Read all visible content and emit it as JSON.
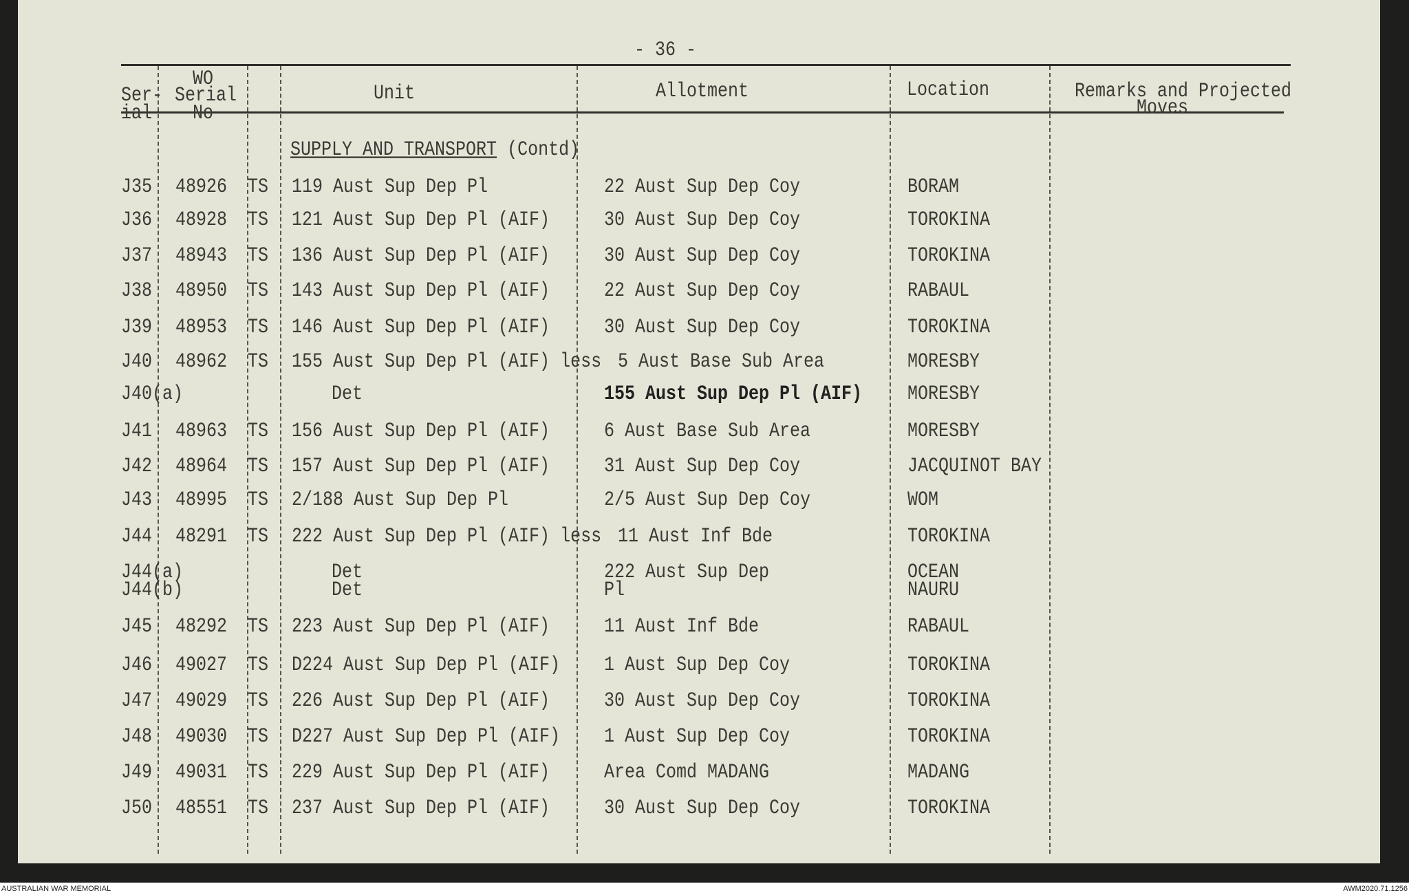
{
  "page_number": "- 36 -",
  "headers": {
    "serial": [
      "Ser-",
      "ial"
    ],
    "wo": [
      "WO",
      "Serial",
      "No"
    ],
    "unit": "Unit",
    "allotment": "Allotment",
    "location": "Location",
    "remarks": [
      "Remarks and Projected",
      "Moves"
    ]
  },
  "section": "SUPPLY AND TRANSPORT",
  "section_suffix": "(Contd)",
  "rows": [
    {
      "serial": "J35",
      "wo": "48926",
      "ts": "TS",
      "unit": "119 Aust Sup Dep Pl",
      "allotment": "22 Aust Sup Dep Coy",
      "location": "BORAM"
    },
    {
      "serial": "J36",
      "wo": "48928",
      "ts": "TS",
      "unit": "121 Aust Sup Dep Pl (AIF)",
      "allotment": "30 Aust Sup Dep Coy",
      "location": "TOROKINA"
    },
    {
      "serial": "J37",
      "wo": "48943",
      "ts": "TS",
      "unit": "136 Aust Sup Dep Pl (AIF)",
      "allotment": "30 Aust Sup Dep Coy",
      "location": "TOROKINA"
    },
    {
      "serial": "J38",
      "wo": "48950",
      "ts": "TS",
      "unit": "143 Aust Sup Dep Pl (AIF)",
      "allotment": "22 Aust Sup Dep Coy",
      "location": "RABAUL"
    },
    {
      "serial": "J39",
      "wo": "48953",
      "ts": "TS",
      "unit": "146 Aust Sup Dep Pl (AIF)",
      "allotment": "30 Aust Sup Dep Coy",
      "location": "TOROKINA"
    },
    {
      "serial": "J40",
      "wo": "48962",
      "ts": "TS",
      "unit": "155 Aust Sup Dep Pl (AIF) less",
      "allotment": "5 Aust Base Sub Area",
      "location": "MORESBY"
    },
    {
      "serial": "J40(a)",
      "wo": "",
      "ts": "",
      "unit": "Det",
      "allotment": "155 Aust Sup Dep Pl (AIF)",
      "location": "MORESBY",
      "bold": true
    },
    {
      "serial": "J41",
      "wo": "48963",
      "ts": "TS",
      "unit": "156 Aust Sup Dep Pl (AIF)",
      "allotment": "6 Aust Base Sub Area",
      "location": "MORESBY"
    },
    {
      "serial": "J42",
      "wo": "48964",
      "ts": "TS",
      "unit": "157 Aust Sup Dep Pl (AIF)",
      "allotment": "31 Aust Sup Dep Coy",
      "location": "JACQUINOT BAY"
    },
    {
      "serial": "J43",
      "wo": "48995",
      "ts": "TS",
      "unit": "2/188 Aust Sup Dep Pl",
      "allotment": "2/5 Aust Sup Dep Coy",
      "location": "WOM"
    },
    {
      "serial": "J44",
      "wo": "48291",
      "ts": "TS",
      "unit": "222 Aust Sup Dep Pl (AIF) less",
      "allotment": "11 Aust Inf Bde",
      "location": "TOROKINA"
    },
    {
      "serial": "J44(a)",
      "wo": "",
      "ts": "",
      "unit": "Det",
      "allotment": "222 Aust Sup Dep",
      "location": "OCEAN"
    },
    {
      "serial": "J44(b)",
      "wo": "",
      "ts": "",
      "unit": "Det",
      "allotment": "Pl",
      "location": "NAURU"
    },
    {
      "serial": "J45",
      "wo": "48292",
      "ts": "TS",
      "unit": "223 Aust Sup Dep Pl (AIF)",
      "allotment": "11 Aust Inf Bde",
      "location": "RABAUL"
    },
    {
      "serial": "J46",
      "wo": "49027",
      "ts": "TS",
      "unit": "D224 Aust Sup Dep Pl (AIF)",
      "allotment": "1 Aust Sup Dep Coy",
      "location": "TOROKINA"
    },
    {
      "serial": "J47",
      "wo": "49029",
      "ts": "TS",
      "unit": "226 Aust Sup Dep Pl (AIF)",
      "allotment": "30 Aust Sup Dep Coy",
      "location": "TOROKINA"
    },
    {
      "serial": "J48",
      "wo": "49030",
      "ts": "TS",
      "unit": "D227 Aust Sup Dep Pl (AIF)",
      "allotment": "1 Aust Sup Dep Coy",
      "location": "TOROKINA"
    },
    {
      "serial": "J49",
      "wo": "49031",
      "ts": "TS",
      "unit": "229 Aust Sup Dep Pl (AIF)",
      "allotment": "Area Comd MADANG",
      "location": "MADANG"
    },
    {
      "serial": "J50",
      "wo": "48551",
      "ts": "TS",
      "unit": "237 Aust Sup Dep Pl (AIF)",
      "allotment": "30 Aust Sup Dep Coy",
      "location": "TOROKINA"
    }
  ],
  "footer": {
    "left": "AUSTRALIAN WAR MEMORIAL",
    "right": "AWM2020.71.1256"
  }
}
